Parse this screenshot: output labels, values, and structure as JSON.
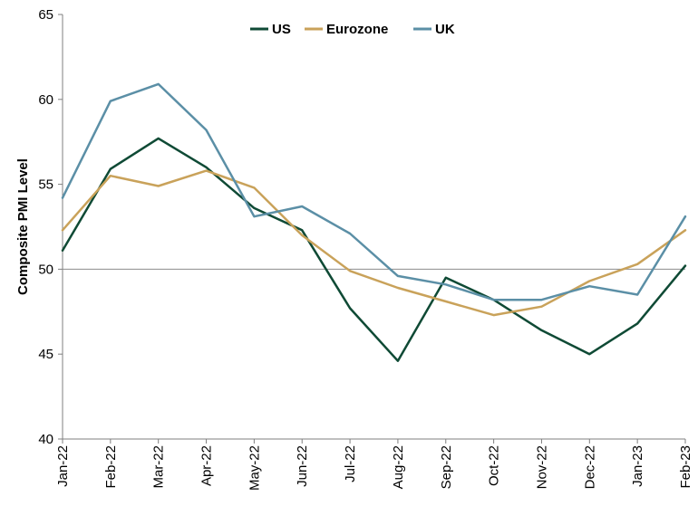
{
  "chart_data": {
    "type": "line",
    "title": "",
    "xlabel": "",
    "ylabel": "Composite PMI Level",
    "ylim": [
      40,
      65
    ],
    "yticks": [
      40,
      45,
      50,
      55,
      60,
      65
    ],
    "reference_line": 50,
    "grid": false,
    "legend_position": "top-center",
    "categories": [
      "Jan-22",
      "Feb-22",
      "Mar-22",
      "Apr-22",
      "May-22",
      "Jun-22",
      "Jul-22",
      "Aug-22",
      "Sep-22",
      "Oct-22",
      "Nov-22",
      "Dec-22",
      "Jan-23",
      "Feb-23"
    ],
    "series": [
      {
        "name": "US",
        "color": "#0f4a35",
        "values": [
          51.1,
          55.9,
          57.7,
          56.0,
          53.6,
          52.3,
          47.7,
          44.6,
          49.5,
          48.2,
          46.4,
          45.0,
          46.8,
          50.2
        ]
      },
      {
        "name": "Eurozone",
        "color": "#c9a25a",
        "values": [
          52.3,
          55.5,
          54.9,
          55.8,
          54.8,
          52.0,
          49.9,
          48.9,
          48.1,
          47.3,
          47.8,
          49.3,
          50.3,
          52.3
        ]
      },
      {
        "name": "UK",
        "color": "#5b8fa6",
        "values": [
          54.2,
          59.9,
          60.9,
          58.2,
          53.1,
          53.7,
          52.1,
          49.6,
          49.1,
          48.2,
          48.2,
          49.0,
          48.5,
          53.1
        ]
      }
    ]
  }
}
